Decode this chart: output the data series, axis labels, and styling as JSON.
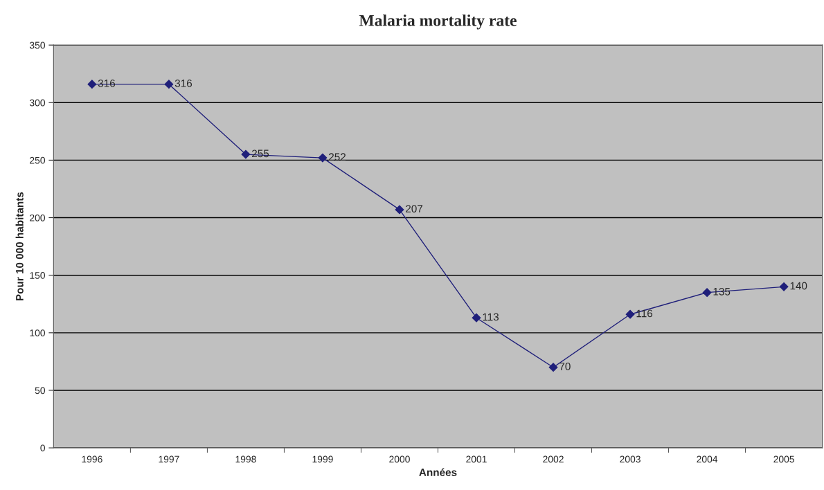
{
  "chart_data": {
    "type": "line",
    "title": "Malaria mortality rate",
    "xlabel": "Années",
    "ylabel": "Pour 10 000 habitants",
    "categories": [
      "1996",
      "1997",
      "1998",
      "1999",
      "2000",
      "2001",
      "2002",
      "2003",
      "2004",
      "2005"
    ],
    "series": [
      {
        "color": "#1f1f7a",
        "values": [
          316,
          316,
          255,
          252,
          207,
          113,
          70,
          116,
          135,
          140
        ]
      }
    ],
    "ylim": [
      0,
      350
    ],
    "yticks": [
      0,
      50,
      100,
      150,
      200,
      250,
      300,
      350
    ],
    "grid": "y",
    "marker": "diamond",
    "line_style": "solid",
    "data_labels": true,
    "legend": false
  }
}
